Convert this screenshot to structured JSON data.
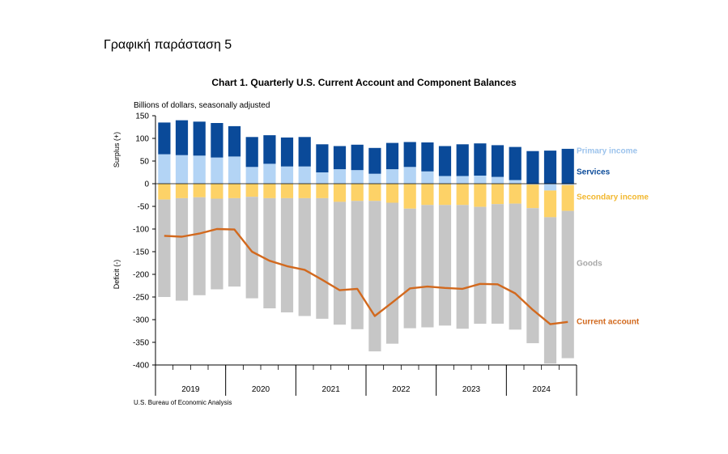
{
  "slide_title": "Γραφική παράσταση 5",
  "chart_data": {
    "type": "bar",
    "title": "Chart 1. Quarterly U.S. Current Account and Component Balances",
    "units": "Billions of dollars, seasonally adjusted",
    "ylabel_surplus": "Surplus (+)",
    "ylabel_deficit": "Deficit (-)",
    "source": "U.S. Bureau of Economic Analysis",
    "ylim": [
      -400,
      150
    ],
    "yticks": [
      150,
      100,
      50,
      0,
      -50,
      -100,
      -150,
      -200,
      -250,
      -300,
      -350,
      -400
    ],
    "years": [
      "2019",
      "2020",
      "2021",
      "2022",
      "2023",
      "2024"
    ],
    "quarters_per_year": 4,
    "series": [
      {
        "name": "Primary income",
        "color": "#b3d4f5",
        "values": [
          65,
          63,
          62,
          58,
          60,
          37,
          44,
          38,
          38,
          25,
          32,
          30,
          22,
          32,
          37,
          27,
          17,
          17,
          18,
          15,
          8,
          -2,
          -15,
          -3
        ]
      },
      {
        "name": "Services",
        "color": "#0a4a99",
        "values": [
          70,
          77,
          75,
          76,
          67,
          66,
          63,
          64,
          65,
          62,
          51,
          56,
          57,
          58,
          55,
          64,
          66,
          70,
          71,
          70,
          73,
          72,
          73,
          77
        ]
      },
      {
        "name": "Secondary income",
        "color": "#fdd267",
        "values": [
          -35,
          -32,
          -30,
          -33,
          -32,
          -29,
          -32,
          -32,
          -32,
          -32,
          -40,
          -38,
          -38,
          -42,
          -55,
          -47,
          -47,
          -47,
          -51,
          -45,
          -44,
          -52,
          -59,
          -57
        ]
      },
      {
        "name": "Goods",
        "color": "#c6c6c6",
        "values": [
          -215,
          -226,
          -216,
          -200,
          -195,
          -224,
          -243,
          -252,
          -260,
          -266,
          -271,
          -283,
          -332,
          -311,
          -264,
          -270,
          -266,
          -273,
          -258,
          -264,
          -278,
          -298,
          -323,
          -325
        ]
      },
      {
        "name": "Current account",
        "color": "#d2691e",
        "type": "line",
        "values": [
          -115,
          -117,
          -110,
          -100,
          -101,
          -150,
          -170,
          -182,
          -190,
          -212,
          -235,
          -232,
          -292,
          -262,
          -231,
          -227,
          -230,
          -232,
          -221,
          -222,
          -242,
          -278,
          -310,
          -305
        ]
      }
    ]
  }
}
